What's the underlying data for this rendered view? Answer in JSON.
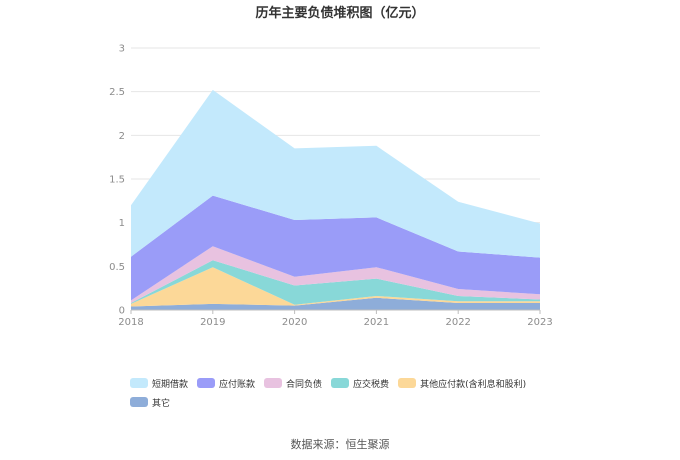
{
  "chart_data": {
    "type": "area",
    "stacked": true,
    "title": "历年主要负债堆积图（亿元）",
    "categories": [
      "2018",
      "2019",
      "2020",
      "2021",
      "2022",
      "2023"
    ],
    "ylim": [
      0,
      3
    ],
    "yticks": [
      "0",
      "0.5",
      "1",
      "1.5",
      "2",
      "2.5",
      "3"
    ],
    "grid": true,
    "legend_position": "bottom",
    "series": [
      {
        "name": "其它",
        "color": "#8eadd9",
        "values": [
          0.04,
          0.07,
          0.05,
          0.14,
          0.08,
          0.08
        ]
      },
      {
        "name": "其他应付款(含利息和股利)",
        "color": "#fcd898",
        "values": [
          0.03,
          0.42,
          0.01,
          0.02,
          0.02,
          0.02
        ]
      },
      {
        "name": "应交税费",
        "color": "#88d8d8",
        "values": [
          0.01,
          0.08,
          0.22,
          0.2,
          0.06,
          0.02
        ]
      },
      {
        "name": "合同负债",
        "color": "#e8c2e0",
        "values": [
          0.03,
          0.16,
          0.1,
          0.13,
          0.08,
          0.06
        ]
      },
      {
        "name": "应付账款",
        "color": "#9a9cf8",
        "values": [
          0.5,
          0.58,
          0.65,
          0.57,
          0.43,
          0.42
        ]
      },
      {
        "name": "短期借款",
        "color": "#c3e9fc",
        "values": [
          0.59,
          1.21,
          0.82,
          0.82,
          0.57,
          0.39
        ]
      }
    ],
    "legend_order": [
      "短期借款",
      "应付账款",
      "合同负债",
      "应交税费",
      "其他应付款(含利息和股利)",
      "其它"
    ]
  },
  "source": "数据来源：恒生聚源"
}
